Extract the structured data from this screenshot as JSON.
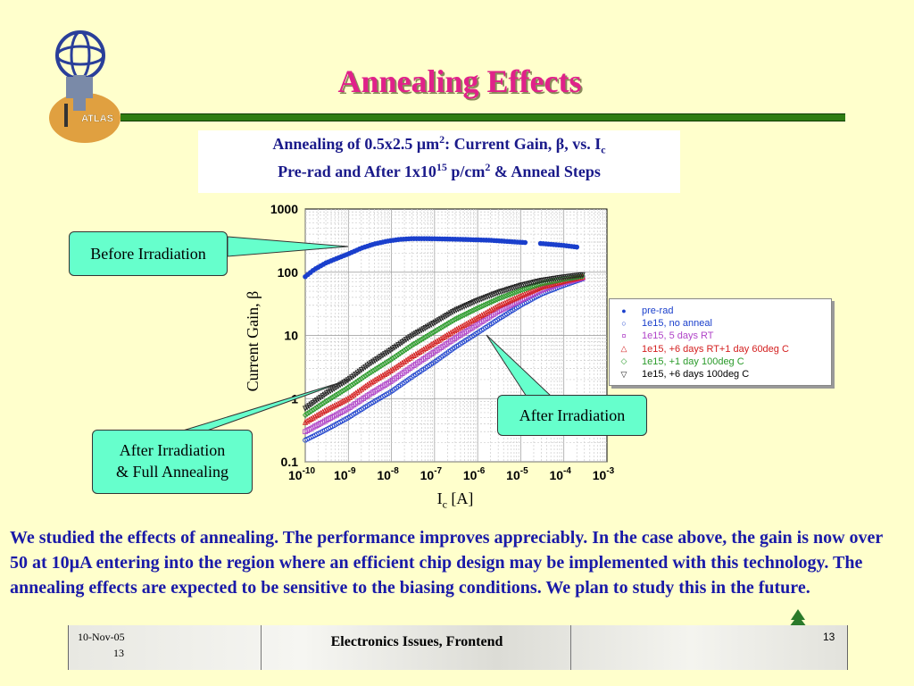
{
  "slide": {
    "title": "Annealing Effects",
    "subtitle_line1_a": "Annealing of 0.5x2.5 ",
    "subtitle_line1_mu": "μ",
    "subtitle_line1_b": "m",
    "subtitle_line1_sup": "2",
    "subtitle_line1_c": ": Current Gain, ",
    "subtitle_line1_beta": "β",
    "subtitle_line1_d": ", vs. I",
    "subtitle_line1_sub": "c",
    "subtitle_line2_a": "Pre-rad and After 1x10",
    "subtitle_line2_sup1": "15",
    "subtitle_line2_b": " p/cm",
    "subtitle_line2_sup2": "2",
    "subtitle_line2_c": " & Anneal Steps",
    "logo_text": "ATLAS",
    "body_text": "We studied the effects of annealing. The performance improves appreciably. In the case above, the gain is now over 50 at 10µA entering into the region where an efficient chip design may be implemented with this technology. The annealing effects are expected to be sensitive to the biasing conditions.  We plan to study this in the future."
  },
  "callouts": {
    "before": "Before Irradiation",
    "after": "After Irradiation",
    "full_line1": "After Irradiation",
    "full_line2": "& Full Annealing"
  },
  "footer": {
    "date": "10-Nov-05",
    "page_left": "13",
    "center": "Electronics Issues, Frontend",
    "page_right": "13"
  },
  "colors": {
    "title": "#e0218a",
    "body": "#1a1aa8",
    "callout": "#66ffcc",
    "rule": "#2e7d12"
  },
  "chart_data": {
    "type": "scatter",
    "xlabel_main": "I",
    "xlabel_sub": "c",
    "xlabel_unit": " [A]",
    "ylabel": "Current Gain, β",
    "x_scale": "log",
    "y_scale": "log",
    "xlim": [
      1e-10,
      0.001
    ],
    "ylim": [
      0.1,
      1000
    ],
    "x_tick_values": [
      1e-10,
      1e-09,
      1e-08,
      1e-07,
      1e-06,
      1e-05,
      0.0001,
      0.001
    ],
    "x_tick_labels": [
      {
        "base": "10",
        "exp": "-10"
      },
      {
        "base": "10",
        "exp": "-9"
      },
      {
        "base": "10",
        "exp": "-8"
      },
      {
        "base": "10",
        "exp": "-7"
      },
      {
        "base": "10",
        "exp": "-6"
      },
      {
        "base": "10",
        "exp": "-5"
      },
      {
        "base": "10",
        "exp": "-4"
      },
      {
        "base": "10",
        "exp": "-3"
      }
    ],
    "y_tick_values": [
      1000,
      100,
      10,
      1,
      0.1
    ],
    "y_tick_labels": [
      "1000",
      "100",
      "10",
      "1",
      "0.1"
    ],
    "grid": true,
    "legend_position": "right",
    "series": [
      {
        "name": "pre-rad",
        "color": "#1a3fcc",
        "marker": "filled-circle",
        "x": [
          1e-10,
          1.6e-10,
          3e-10,
          6e-10,
          1e-09,
          2e-09,
          4e-09,
          8e-09,
          1.5e-08,
          3e-08,
          6e-08,
          1e-07,
          2e-07,
          5e-07,
          1e-06,
          2e-06,
          4e-06,
          8e-06,
          2e-05,
          4e-05,
          0.0001,
          0.0002
        ],
        "y": [
          85,
          110,
          140,
          170,
          195,
          240,
          280,
          310,
          330,
          340,
          340,
          338,
          335,
          330,
          325,
          320,
          310,
          300,
          290,
          280,
          265,
          250
        ]
      },
      {
        "name": "1e15, no anneal",
        "color": "#1a3fcc",
        "marker": "open-circle",
        "x": [
          1e-10,
          3e-10,
          1e-09,
          3e-09,
          1e-08,
          3e-08,
          1e-07,
          3e-07,
          1e-06,
          3e-06,
          1e-05,
          3e-05,
          0.0001,
          0.0003
        ],
        "y": [
          0.22,
          0.32,
          0.5,
          0.8,
          1.3,
          2.2,
          3.8,
          6.5,
          11,
          18,
          30,
          45,
          62,
          80
        ]
      },
      {
        "name": "1e15, 5 days RT",
        "color": "#b044c8",
        "marker": "open-square",
        "x": [
          1e-10,
          3e-10,
          1e-09,
          3e-09,
          1e-08,
          3e-08,
          1e-07,
          3e-07,
          1e-06,
          3e-06,
          1e-05,
          3e-05,
          0.0001,
          0.0003
        ],
        "y": [
          0.3,
          0.45,
          0.7,
          1.15,
          1.9,
          3.2,
          5.5,
          9,
          15,
          24,
          36,
          52,
          68,
          82
        ]
      },
      {
        "name": "1e15, +6 days RT+1 day 60deg C",
        "color": "#d42020",
        "marker": "open-triangle-up",
        "x": [
          1e-10,
          3e-10,
          1e-09,
          3e-09,
          1e-08,
          3e-08,
          1e-07,
          3e-07,
          1e-06,
          3e-06,
          1e-05,
          3e-05,
          0.0001,
          0.0003
        ],
        "y": [
          0.42,
          0.65,
          1.0,
          1.7,
          2.8,
          4.6,
          7.6,
          12,
          19,
          29,
          42,
          58,
          72,
          85
        ]
      },
      {
        "name": "1e15, +1 day 100deg C",
        "color": "#2a9a2a",
        "marker": "open-diamond",
        "x": [
          1e-10,
          3e-10,
          1e-09,
          3e-09,
          1e-08,
          3e-08,
          1e-07,
          3e-07,
          1e-06,
          3e-06,
          1e-05,
          3e-05,
          0.0001,
          0.0003
        ],
        "y": [
          0.55,
          0.9,
          1.5,
          2.5,
          4.2,
          7,
          11.5,
          18,
          27,
          38,
          52,
          66,
          78,
          88
        ]
      },
      {
        "name": "1e15, +6 days 100deg C",
        "color": "#222222",
        "marker": "open-triangle-down",
        "x": [
          1e-10,
          3e-10,
          1e-09,
          3e-09,
          1e-08,
          3e-08,
          1e-07,
          3e-07,
          1e-06,
          3e-06,
          1e-05,
          3e-05,
          0.0001,
          0.0003
        ],
        "y": [
          0.7,
          1.2,
          2.0,
          3.5,
          6,
          10,
          16,
          25,
          36,
          48,
          62,
          74,
          84,
          92
        ]
      }
    ]
  }
}
